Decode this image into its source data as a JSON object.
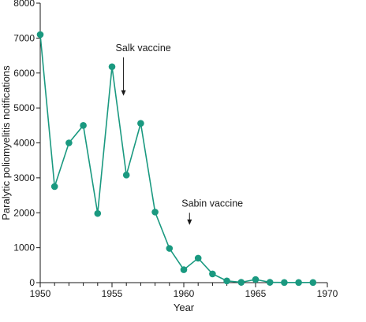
{
  "chart_data": {
    "type": "line",
    "title": "",
    "xlabel": "Year",
    "ylabel": "Paralytic poliomyelitis notifications",
    "xlim": [
      1950,
      1970
    ],
    "ylim": [
      0,
      8000
    ],
    "xticks": [
      1950,
      1955,
      1960,
      1965,
      1970
    ],
    "yticks": [
      0,
      1000,
      2000,
      3000,
      4000,
      5000,
      6000,
      7000,
      8000
    ],
    "grid": false,
    "legend": "none",
    "series": [
      {
        "color": "#1a9980",
        "x": [
          1950,
          1951,
          1952,
          1953,
          1954,
          1955,
          1956,
          1957,
          1958,
          1959,
          1960,
          1961,
          1962,
          1963,
          1964,
          1965,
          1966,
          1967,
          1968,
          1969
        ],
        "y": [
          7100,
          2750,
          4000,
          4500,
          1980,
          6180,
          3080,
          4560,
          2020,
          980,
          370,
          700,
          250,
          50,
          10,
          90,
          10,
          5,
          5,
          5
        ]
      }
    ],
    "annotations": [
      {
        "text": "Salk vaccine",
        "x": 1955.8,
        "arrow_from_y": 6450,
        "arrow_to_y": 5350
      },
      {
        "text": "Sabin vaccine",
        "x": 1960.4,
        "arrow_from_y": 2000,
        "arrow_to_y": 1650
      }
    ]
  }
}
